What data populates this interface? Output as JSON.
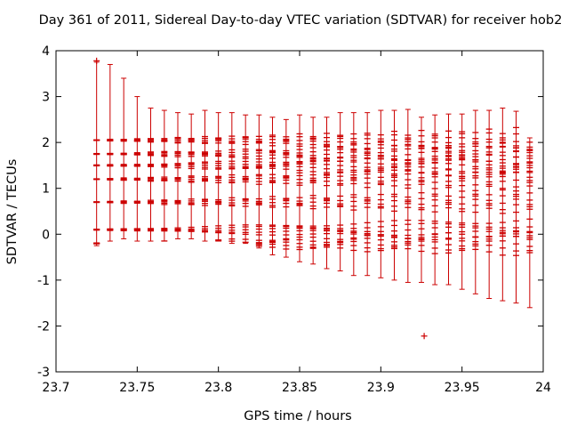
{
  "chart_data": {
    "type": "scatter",
    "title": "Day 361 of 2011, Sidereal Day-to-day VTEC variation (SDTVAR) for receiver hob2",
    "xlabel": "GPS time / hours",
    "ylabel": "SDTVAR / TECUs",
    "xlim": [
      23.7,
      24.0
    ],
    "ylim": [
      -3,
      4
    ],
    "xticks": [
      23.7,
      23.75,
      23.8,
      23.85,
      23.9,
      23.95,
      24.0
    ],
    "xtick_labels": [
      "23.7",
      "23.75",
      "23.8",
      "23.85",
      "23.9",
      "23.95",
      "24"
    ],
    "yticks": [
      -3,
      -2,
      -1,
      0,
      1,
      2,
      3,
      4
    ],
    "ytick_labels": [
      "-3",
      "-2",
      "-1",
      "0",
      "1",
      "2",
      "3",
      "4"
    ],
    "grid": false,
    "color": "#cc0000",
    "x": [
      23.725,
      23.7333,
      23.7417,
      23.75,
      23.7583,
      23.7667,
      23.775,
      23.7833,
      23.7917,
      23.8,
      23.8083,
      23.8167,
      23.825,
      23.8333,
      23.8417,
      23.85,
      23.8583,
      23.8667,
      23.875,
      23.8833,
      23.8917,
      23.9,
      23.9083,
      23.9167,
      23.925,
      23.9333,
      23.9417,
      23.95,
      23.9583,
      23.9667,
      23.975,
      23.9833,
      23.9917
    ],
    "clusters": [
      -0.2,
      0.1,
      0.7,
      1.2,
      1.5,
      1.75,
      2.05
    ],
    "spread_start": 0.05,
    "spread_end": 1.35,
    "whisker_upper": [
      3.75,
      3.7,
      3.4,
      3.0,
      2.75,
      2.7,
      2.65,
      2.62,
      2.7,
      2.65,
      2.65,
      2.6,
      2.6,
      2.55,
      2.5,
      2.6,
      2.55,
      2.55,
      2.65,
      2.65,
      2.65,
      2.7,
      2.7,
      2.72,
      2.55,
      2.6,
      2.62,
      2.62,
      2.7,
      2.7,
      2.75,
      2.68,
      2.1
    ],
    "whisker_lower": [
      -0.25,
      -0.15,
      -0.1,
      -0.15,
      -0.15,
      -0.15,
      -0.1,
      -0.1,
      -0.15,
      -0.15,
      -0.2,
      -0.2,
      -0.3,
      -0.45,
      -0.5,
      -0.6,
      -0.65,
      -0.75,
      -0.8,
      -0.9,
      -0.9,
      -0.95,
      -1.0,
      -1.05,
      -1.05,
      -1.1,
      -1.1,
      -1.2,
      -1.3,
      -1.4,
      -1.45,
      -1.5,
      -1.6
    ],
    "outliers": [
      {
        "x": 23.725,
        "y": 3.78
      },
      {
        "x": 23.9267,
        "y": -2.22
      }
    ]
  }
}
